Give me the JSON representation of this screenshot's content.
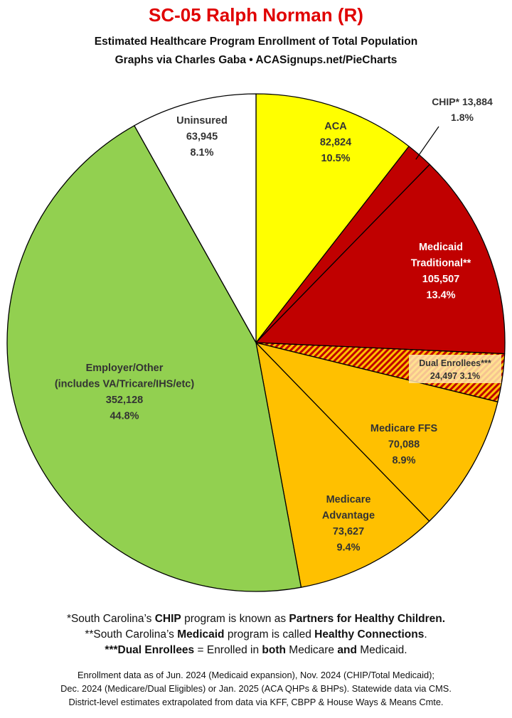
{
  "title": "SC-05 Ralph Norman (R)",
  "subtitle_line1": "Estimated Healthcare Program Enrollment of Total Population",
  "subtitle_line2": "Graphs via Charles Gaba  •  ACASignups.net/PieCharts",
  "chart_data": {
    "type": "pie",
    "start": "12 o'clock",
    "direction": "clockwise",
    "slices": [
      {
        "label_lines": [
          "ACA"
        ],
        "value": 82824,
        "value_text": "82,824",
        "percent": 10.5,
        "percent_text": "10.5%",
        "color": "#ffff00",
        "text_color": "#333333"
      },
      {
        "label_lines": [
          "CHIP* 13,884"
        ],
        "value": 13884,
        "value_text": "13,884",
        "percent": 1.8,
        "percent_text": "1.8%",
        "color": "#c00000",
        "text_color": "#333333",
        "callout": true
      },
      {
        "label_lines": [
          "Medicaid",
          "Traditional**"
        ],
        "value": 105507,
        "value_text": "105,507",
        "percent": 13.4,
        "percent_text": "13.4%",
        "color": "#c00000",
        "text_color": "#ffffff"
      },
      {
        "label_lines": [
          "Dual Enrollees***"
        ],
        "value": 24497,
        "value_text": "24,497",
        "percent": 3.1,
        "percent_text": "3.1%",
        "color": "#ffc000",
        "hatch_color": "#c00000",
        "text_color": "#333333",
        "hatched": true
      },
      {
        "label_lines": [
          "Medicare FFS"
        ],
        "value": 70088,
        "value_text": "70,088",
        "percent": 8.9,
        "percent_text": "8.9%",
        "color": "#ffc000",
        "text_color": "#333333"
      },
      {
        "label_lines": [
          "Medicare",
          "Advantage"
        ],
        "value": 73627,
        "value_text": "73,627",
        "percent": 9.4,
        "percent_text": "9.4%",
        "color": "#ffc000",
        "text_color": "#333333"
      },
      {
        "label_lines": [
          "Employer/Other",
          "(includes VA/Tricare/IHS/etc)"
        ],
        "value": 352128,
        "value_text": "352,128",
        "percent": 44.8,
        "percent_text": "44.8%",
        "color": "#92d050",
        "text_color": "#333333"
      },
      {
        "label_lines": [
          "Uninsured"
        ],
        "value": 63945,
        "value_text": "63,945",
        "percent": 8.1,
        "percent_text": "8.1%",
        "color": "#ffffff",
        "text_color": "#333333"
      }
    ]
  },
  "notes": {
    "n1_pre": "*South Carolina’s ",
    "n1_b1": "CHIP",
    "n1_mid": " program is known as ",
    "n1_b2": "Partners for Healthy Children.",
    "n2_pre": "**South Carolina’s ",
    "n2_b1": "Medicaid",
    "n2_mid": " program is called ",
    "n2_b2": "Healthy Connections",
    "n2_end": ".",
    "n3_b1": "***Dual Enrollees",
    "n3_mid": " = Enrolled in ",
    "n3_b2": "both",
    "n3_mid2": " Medicare ",
    "n3_b3": "and",
    "n3_end": " Medicaid."
  },
  "source": {
    "line1": "Enrollment data as of Jun. 2024 (Medicaid expansion), Nov. 2024 (CHIP/Total Medicaid);",
    "line2": "Dec. 2024 (Medicare/Dual Eligibles) or Jan. 2025 (ACA QHPs & BHPs). Statewide data via CMS.",
    "line3": "District-level estimates extrapolated from data via KFF, CBPP & House Ways & Means Cmte."
  }
}
